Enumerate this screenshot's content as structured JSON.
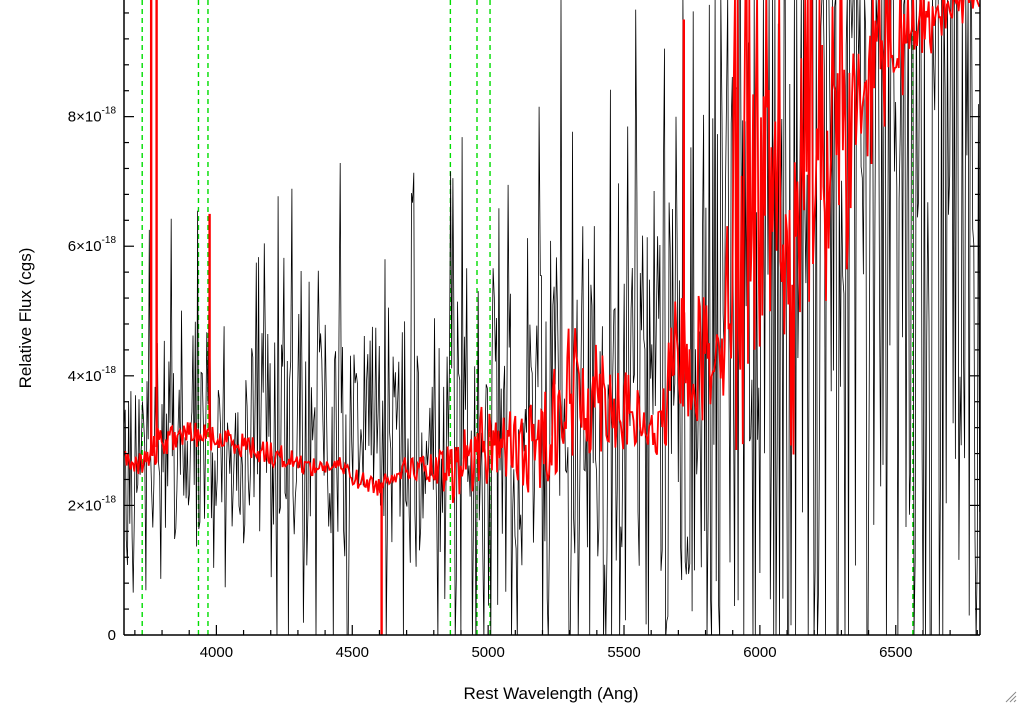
{
  "chart_data": {
    "type": "line",
    "title": "",
    "xlabel": "Rest Wavelength (Ang)",
    "ylabel": "Relative Flux (cgs)",
    "xlim": [
      3660,
      6810
    ],
    "ylim": [
      0,
      9.8e-18
    ],
    "x_ticks": [
      4000,
      4500,
      5000,
      5500,
      6000,
      6500
    ],
    "x_tick_labels": [
      "4000",
      "4500",
      "5000",
      "5500",
      "6000",
      "6500"
    ],
    "y_ticks": [
      0,
      2e-18,
      4e-18,
      6e-18,
      8e-18
    ],
    "y_tick_labels": [
      {
        "mantissa": "0",
        "exponent": ""
      },
      {
        "mantissa": "2×10",
        "exponent": "-18"
      },
      {
        "mantissa": "4×10",
        "exponent": "-18"
      },
      {
        "mantissa": "6×10",
        "exponent": "-18"
      },
      {
        "mantissa": "8×10",
        "exponent": "-18"
      }
    ],
    "grid": false,
    "reference_lines": {
      "color": "#00dd00",
      "style": "dashed",
      "x": [
        3727,
        3934,
        3969,
        4861,
        4959,
        5007,
        6563
      ]
    },
    "series": [
      {
        "color": "#000000",
        "style": "noisy-spectrum",
        "envelope": {
          "x": [
            3660,
            3800,
            4000,
            4300,
            4600,
            4900,
            5100,
            5300,
            5500,
            5650,
            5800,
            6000,
            6200,
            6500,
            6810
          ],
          "center": [
            3e-18,
            3e-18,
            3e-18,
            3e-18,
            3e-18,
            3e-18,
            3.2e-18,
            3.5e-18,
            3.6e-18,
            4e-18,
            5e-18,
            6e-18,
            6.5e-18,
            7e-18,
            7.5e-18
          ],
          "spread": [
            1.5e-18,
            1.6e-18,
            1.8e-18,
            2e-18,
            2.2e-18,
            2.4e-18,
            2.8e-18,
            3.3e-18,
            3.8e-18,
            5e-18,
            6.5e-18,
            8e-18,
            9e-18,
            9.5e-18,
            1e-17
          ]
        }
      },
      {
        "color": "#ff0000",
        "style": "model-continuum",
        "x": [
          3660,
          3700,
          3750,
          3780,
          3820,
          3880,
          3950,
          4000,
          4060,
          4120,
          4200,
          4280,
          4340,
          4400,
          4460,
          4520,
          4580,
          4600,
          4650,
          4720,
          4800,
          4880,
          4960,
          5040,
          5120,
          5200,
          5260,
          5320,
          5400,
          5460,
          5520,
          5580,
          5620,
          5660,
          5700,
          5740,
          5800,
          5850,
          5900,
          5950,
          6000,
          6050,
          6100,
          6160,
          6220,
          6280,
          6340,
          6400,
          6460,
          6520,
          6580,
          6640,
          6700,
          6760,
          6810
        ],
        "y": [
          2.7e-18,
          2.6e-18,
          2.7e-18,
          2.9e-18,
          3e-18,
          3.1e-18,
          3.1e-18,
          3e-18,
          3e-18,
          2.9e-18,
          2.8e-18,
          2.7e-18,
          2.6e-18,
          2.6e-18,
          2.6e-18,
          2.4e-18,
          2.3e-18,
          2.3e-18,
          2.5e-18,
          2.6e-18,
          2.5e-18,
          2.5e-18,
          2.9e-18,
          3e-18,
          2.8e-18,
          3e-18,
          3.6e-18,
          3.7e-18,
          3.8e-18,
          3.6e-18,
          3.4e-18,
          3.2e-18,
          3e-18,
          3.6e-18,
          4.5e-18,
          4.2e-18,
          4.3e-18,
          4.8e-18,
          5.2e-18,
          6e-18,
          6.5e-18,
          6.3e-18,
          6.2e-18,
          6.4e-18,
          6.6e-18,
          7.6e-18,
          8.1e-18,
          8.6e-18,
          9e-18,
          9.2e-18,
          9.4e-18,
          9.6e-18,
          9.7e-18,
          9.8e-18,
          9.8e-18
        ],
        "noise": [
          1.5e-19,
          1.5e-19,
          2e-19,
          3e-19,
          2e-19,
          2e-19,
          2e-19,
          2e-19,
          2e-19,
          2e-19,
          2e-19,
          1.5e-19,
          1.5e-19,
          1.5e-19,
          1.5e-19,
          1.5e-19,
          1.5e-19,
          1.5e-19,
          1.5e-19,
          2e-19,
          3e-19,
          5e-19,
          7e-19,
          6e-19,
          6e-19,
          8e-19,
          1.1e-18,
          1.2e-18,
          1e-18,
          8e-19,
          6e-19,
          4e-19,
          3e-19,
          8e-19,
          1e-18,
          1e-18,
          1e-18,
          1.2e-18,
          1.5e-18,
          2e-18,
          2.4e-18,
          2e-18,
          1.8e-18,
          1.5e-18,
          1.5e-18,
          1.3e-18,
          1e-18,
          8e-19,
          6e-19,
          5e-19,
          4e-19,
          3e-19,
          2e-19,
          1.5e-19,
          1.5e-19
        ]
      }
    ],
    "annotations": {
      "red_spikes": [
        {
          "x": 3760,
          "y": 9.8e-18
        },
        {
          "x": 3780,
          "y": 9.8e-18
        },
        {
          "x": 3975,
          "y": 6.5e-18
        },
        {
          "x": 4608,
          "y": 0
        },
        {
          "x": 5720,
          "y": 9.5e-18
        }
      ]
    }
  }
}
